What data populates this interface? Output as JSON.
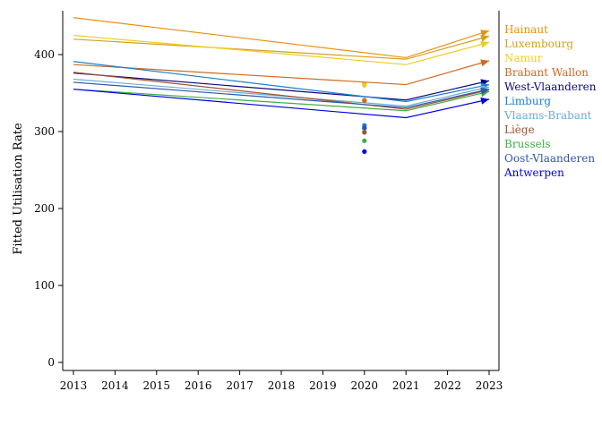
{
  "chart_data": {
    "type": "line",
    "title": "",
    "xlabel": "",
    "ylabel": "Fitted Utilisation Rate",
    "xlim": [
      2013,
      2023
    ],
    "ylim": [
      -10,
      460
    ],
    "x_ticks": [
      "2013",
      "2014",
      "2015",
      "2016",
      "2017",
      "2018",
      "2019",
      "2020",
      "2021",
      "2022",
      "2023"
    ],
    "y_ticks": [
      "0",
      "100",
      "200",
      "300",
      "400"
    ],
    "grid": false,
    "legend": "right, labels at line ends",
    "series": [
      {
        "name": "Hainaut",
        "color": "#e8920f",
        "x": [
          2013,
          2021,
          2023
        ],
        "y": [
          448,
          396,
          431
        ],
        "point_2020": 341
      },
      {
        "name": "Luxembourg",
        "color": "#d4a020",
        "x": [
          2013,
          2021,
          2023
        ],
        "y": [
          420,
          394,
          424
        ],
        "point_2020": 362
      },
      {
        "name": "Namur",
        "color": "#f2cc1c",
        "x": [
          2013,
          2021,
          2023
        ],
        "y": [
          425,
          387,
          416
        ],
        "point_2020": 360
      },
      {
        "name": "Brabant Wallon",
        "color": "#d2691e",
        "x": [
          2013,
          2021,
          2023
        ],
        "y": [
          387,
          361,
          392
        ],
        "point_2020": 340
      },
      {
        "name": "West-Vlaanderen",
        "color": "#0b0b7a",
        "x": [
          2013,
          2021,
          2023
        ],
        "y": [
          376,
          341,
          366
        ],
        "point_2020": 304
      },
      {
        "name": "Limburg",
        "color": "#1e7fcf",
        "x": [
          2013,
          2021,
          2023
        ],
        "y": [
          391,
          339,
          361
        ],
        "point_2020": 308
      },
      {
        "name": "Vlaams-Brabant",
        "color": "#6aaed6",
        "x": [
          2013,
          2021,
          2023
        ],
        "y": [
          368,
          333,
          358
        ],
        "point_2020": 303
      },
      {
        "name": "Liège",
        "color": "#a0522d",
        "x": [
          2013,
          2021,
          2023
        ],
        "y": [
          377,
          329,
          354
        ],
        "point_2020": 299
      },
      {
        "name": "Brussels",
        "color": "#3cb043",
        "x": [
          2013,
          2021,
          2023
        ],
        "y": [
          355,
          327,
          352
        ],
        "point_2020": 288
      },
      {
        "name": "Oost-Vlaanderen",
        "color": "#3355aa",
        "x": [
          2013,
          2021,
          2023
        ],
        "y": [
          364,
          331,
          355
        ],
        "point_2020": 305
      },
      {
        "name": "Antwerpen",
        "color": "#0000e6",
        "x": [
          2013,
          2021,
          2023
        ],
        "y": [
          355,
          318,
          342
        ],
        "point_2020": 274
      }
    ]
  }
}
